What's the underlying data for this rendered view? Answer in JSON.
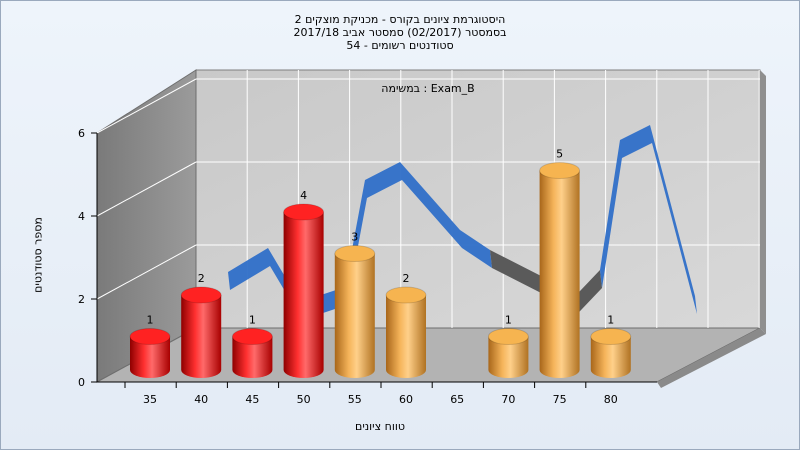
{
  "header": {
    "line1": "היסטוגרמת ציונים בקורס - מכניקת מוצקים 2",
    "line2": "בסמסטר  (02/2017)  סמסטר אביב 2017/18",
    "line3": "סטודנטים רשומים - 54"
  },
  "chart_data": {
    "type": "bar",
    "title": "Exam_B : במשימה",
    "xlabel": "טווח ציונים",
    "ylabel": "מספר סטודנטים",
    "x_ticks": [
      35,
      40,
      45,
      50,
      55,
      60,
      65,
      70,
      75,
      80
    ],
    "y_ticks": [
      0,
      2,
      4,
      6
    ],
    "ylim": [
      0,
      6
    ],
    "grid": true,
    "bars": [
      {
        "x": 35,
        "value": 1,
        "color": "#e01010"
      },
      {
        "x": 40,
        "value": 2,
        "color": "#e01010"
      },
      {
        "x": 45,
        "value": 1,
        "color": "#e01010"
      },
      {
        "x": 50,
        "value": 4,
        "color": "#e01010"
      },
      {
        "x": 55,
        "value": 3,
        "color": "#f0a838"
      },
      {
        "x": 60,
        "value": 2,
        "color": "#f0a838"
      },
      {
        "x": 70,
        "value": 1,
        "color": "#f0a838"
      },
      {
        "x": 75,
        "value": 5,
        "color": "#f0a838"
      },
      {
        "x": 80,
        "value": 1,
        "color": "#f0a838"
      }
    ],
    "curve_color": "#2f6fc8",
    "curve_shadow_color": "#5a5a5a"
  }
}
